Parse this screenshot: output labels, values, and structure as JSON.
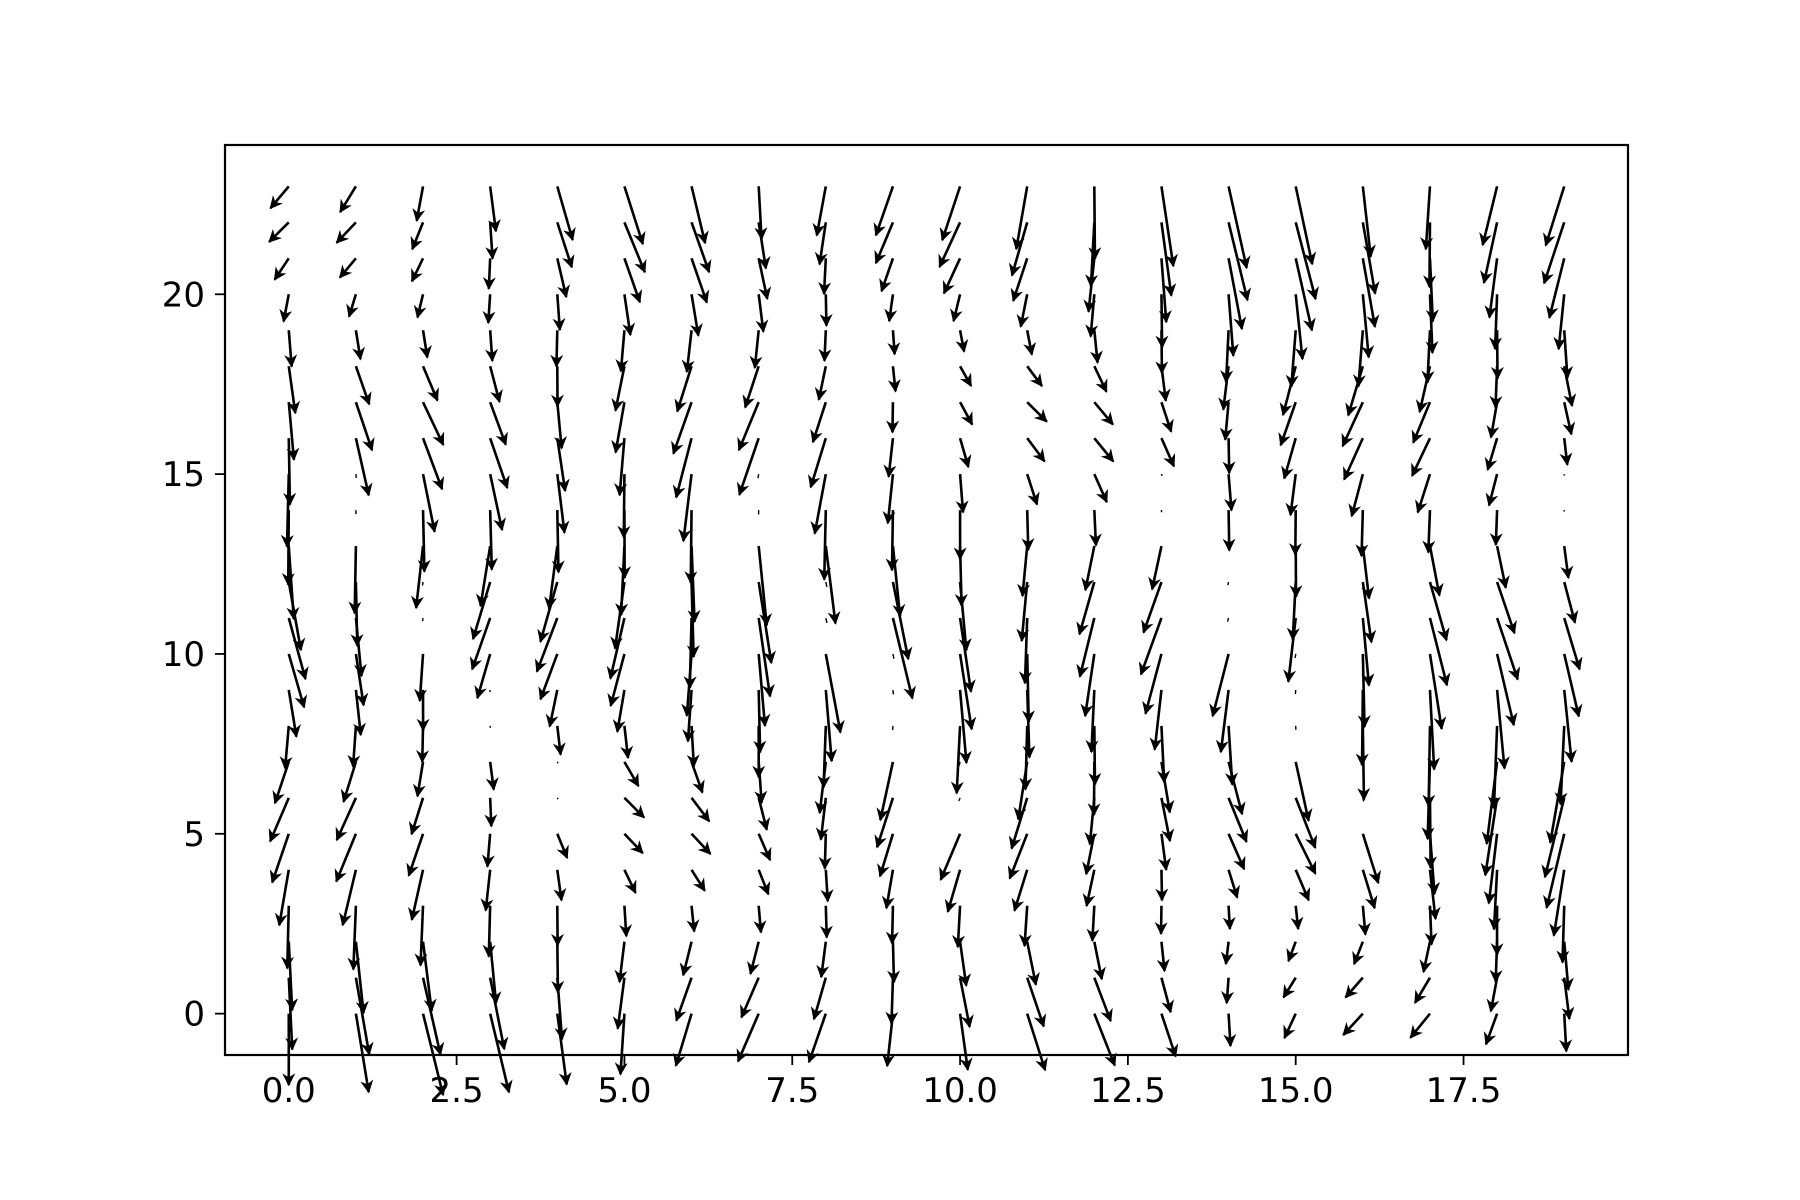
{
  "chart_data": {
    "type": "quiver",
    "title": "",
    "xlabel": "",
    "ylabel": "",
    "xlim": [
      -0.95,
      19.95
    ],
    "ylim": [
      -1.15,
      24.15
    ],
    "grid": false,
    "legend": "none",
    "arrow_color": "#000000",
    "x_ticks": [
      {
        "value": 0.0,
        "label": "0.0"
      },
      {
        "value": 2.5,
        "label": "2.5"
      },
      {
        "value": 5.0,
        "label": "5.0"
      },
      {
        "value": 7.5,
        "label": "7.5"
      },
      {
        "value": 10.0,
        "label": "10.0"
      },
      {
        "value": 12.5,
        "label": "12.5"
      },
      {
        "value": 15.0,
        "label": "15.0"
      },
      {
        "value": 17.5,
        "label": "17.5"
      }
    ],
    "y_ticks": [
      {
        "value": 0,
        "label": "0"
      },
      {
        "value": 5,
        "label": "5"
      },
      {
        "value": 10,
        "label": "10"
      },
      {
        "value": 15,
        "label": "15"
      },
      {
        "value": 20,
        "label": "20"
      }
    ],
    "grid_x": [
      0,
      1,
      2,
      3,
      4,
      5,
      6,
      7,
      8,
      9,
      10,
      11,
      12,
      13,
      14,
      15,
      16,
      17,
      18,
      19
    ],
    "grid_y": [
      0,
      1,
      2,
      3,
      4,
      5,
      6,
      7,
      8,
      9,
      10,
      11,
      12,
      13,
      14,
      15,
      16,
      17,
      18,
      19,
      20,
      21,
      22,
      23
    ],
    "field_description": "vector field sampled on a 20 x 24 grid; arrows are mostly downward-pointing",
    "scale": 0.16
  }
}
